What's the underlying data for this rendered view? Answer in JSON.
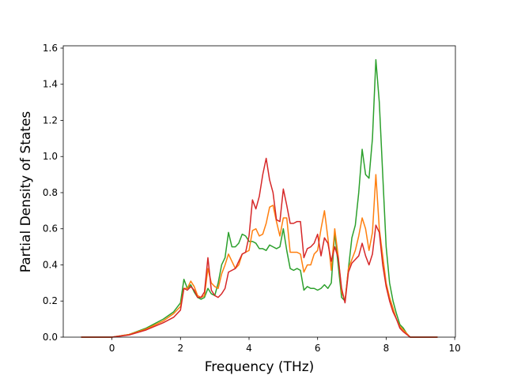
{
  "chart_data": {
    "type": "line",
    "xlabel": "Frequency (THz)",
    "ylabel": "Partial Density of States",
    "x": [
      -0.9,
      0,
      0.5,
      1.0,
      1.5,
      1.8,
      2.0,
      2.1,
      2.2,
      2.3,
      2.4,
      2.5,
      2.6,
      2.7,
      2.8,
      2.9,
      3.0,
      3.1,
      3.2,
      3.3,
      3.4,
      3.5,
      3.6,
      3.7,
      3.8,
      3.9,
      4.0,
      4.1,
      4.2,
      4.3,
      4.4,
      4.5,
      4.6,
      4.7,
      4.8,
      4.9,
      5.0,
      5.1,
      5.2,
      5.3,
      5.4,
      5.5,
      5.6,
      5.7,
      5.8,
      5.9,
      6.0,
      6.1,
      6.2,
      6.3,
      6.4,
      6.5,
      6.6,
      6.7,
      6.8,
      6.9,
      7.0,
      7.1,
      7.2,
      7.3,
      7.4,
      7.5,
      7.6,
      7.7,
      7.8,
      7.9,
      8.0,
      8.1,
      8.2,
      8.3,
      8.4,
      8.5,
      8.6,
      8.7,
      9.5
    ],
    "series": [
      {
        "color": "#2ca02c",
        "values": [
          0,
          0,
          0.015,
          0.05,
          0.1,
          0.14,
          0.19,
          0.32,
          0.27,
          0.29,
          0.25,
          0.22,
          0.21,
          0.22,
          0.27,
          0.24,
          0.23,
          0.3,
          0.4,
          0.44,
          0.58,
          0.5,
          0.5,
          0.52,
          0.57,
          0.56,
          0.53,
          0.53,
          0.52,
          0.49,
          0.49,
          0.48,
          0.51,
          0.5,
          0.49,
          0.5,
          0.6,
          0.48,
          0.38,
          0.37,
          0.38,
          0.37,
          0.26,
          0.28,
          0.27,
          0.27,
          0.26,
          0.27,
          0.29,
          0.27,
          0.3,
          0.58,
          0.4,
          0.22,
          0.2,
          0.38,
          0.55,
          0.62,
          0.8,
          1.04,
          0.9,
          0.88,
          1.1,
          1.536,
          1.3,
          0.9,
          0.5,
          0.3,
          0.2,
          0.13,
          0.07,
          0.05,
          0.02,
          0,
          0
        ]
      },
      {
        "color": "#ff7f0e",
        "values": [
          0,
          0,
          0.015,
          0.045,
          0.09,
          0.13,
          0.17,
          0.27,
          0.27,
          0.31,
          0.28,
          0.23,
          0.22,
          0.23,
          0.38,
          0.3,
          0.28,
          0.27,
          0.35,
          0.4,
          0.46,
          0.42,
          0.38,
          0.4,
          0.46,
          0.47,
          0.48,
          0.59,
          0.6,
          0.56,
          0.57,
          0.63,
          0.72,
          0.73,
          0.64,
          0.56,
          0.66,
          0.66,
          0.47,
          0.47,
          0.47,
          0.46,
          0.36,
          0.4,
          0.4,
          0.46,
          0.48,
          0.6,
          0.7,
          0.55,
          0.37,
          0.6,
          0.45,
          0.25,
          0.2,
          0.38,
          0.43,
          0.48,
          0.56,
          0.66,
          0.6,
          0.48,
          0.58,
          0.9,
          0.6,
          0.45,
          0.3,
          0.22,
          0.16,
          0.1,
          0.06,
          0.04,
          0.02,
          0,
          0
        ]
      },
      {
        "color": "#d62728",
        "values": [
          0,
          0,
          0.012,
          0.04,
          0.08,
          0.11,
          0.15,
          0.27,
          0.26,
          0.28,
          0.26,
          0.22,
          0.22,
          0.25,
          0.44,
          0.26,
          0.23,
          0.22,
          0.24,
          0.27,
          0.36,
          0.37,
          0.38,
          0.42,
          0.46,
          0.47,
          0.56,
          0.76,
          0.71,
          0.78,
          0.9,
          0.99,
          0.87,
          0.8,
          0.65,
          0.64,
          0.82,
          0.73,
          0.63,
          0.63,
          0.64,
          0.64,
          0.44,
          0.49,
          0.5,
          0.52,
          0.57,
          0.45,
          0.55,
          0.52,
          0.42,
          0.5,
          0.44,
          0.27,
          0.19,
          0.36,
          0.41,
          0.43,
          0.45,
          0.52,
          0.45,
          0.4,
          0.46,
          0.62,
          0.58,
          0.4,
          0.28,
          0.2,
          0.14,
          0.1,
          0.05,
          0.03,
          0.015,
          0,
          0
        ]
      }
    ],
    "xlim": [
      -1.42,
      10.02
    ],
    "xticks": [
      0,
      2,
      4,
      6,
      8,
      10
    ],
    "ylim": [
      0,
      1.613
    ],
    "yticks": [
      {
        "value": 0,
        "label": "0.0"
      },
      0.2,
      0.4,
      0.6,
      0.8,
      {
        "value": 1,
        "label": "1.0"
      },
      1.2,
      1.4,
      1.6
    ],
    "grid": false
  }
}
